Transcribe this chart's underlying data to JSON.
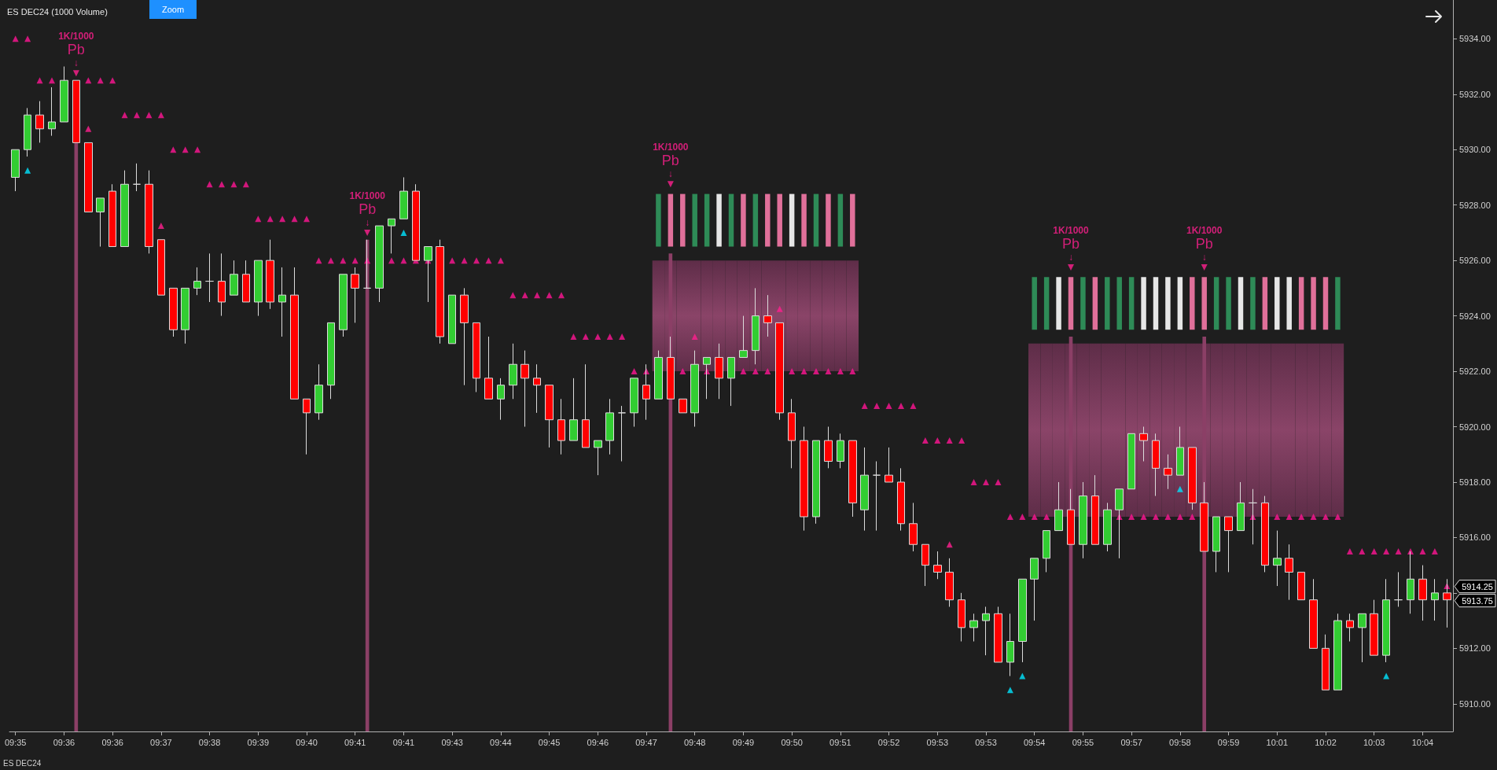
{
  "chart_data": {
    "type": "candlestick",
    "title": "ES DEC24 (1000 Volume)",
    "categories": [
      "09:35",
      null,
      null,
      null,
      "09:36",
      null,
      null,
      null,
      "09:36",
      null,
      null,
      null,
      "09:37",
      null,
      null,
      null,
      "09:38",
      null,
      null,
      null,
      "09:39",
      null,
      null,
      null,
      "09:40",
      null,
      null,
      null,
      "09:41",
      null,
      null,
      null,
      "09:41",
      null,
      null,
      null,
      "09:43",
      null,
      null,
      null,
      "09:44",
      null,
      null,
      null,
      "09:45",
      null,
      null,
      null,
      "09:46",
      null,
      null,
      null,
      "09:47",
      null,
      null,
      null,
      "09:48",
      null,
      null,
      null,
      "09:49",
      null,
      null,
      null,
      "09:50",
      null,
      null,
      null,
      "09:51",
      null,
      null,
      null,
      "09:52",
      null,
      null,
      null,
      "09:53",
      null,
      null,
      null,
      "09:53",
      null,
      null,
      null,
      "09:54",
      null,
      null,
      null,
      "09:55",
      null,
      null,
      null,
      "09:57",
      null,
      null,
      null,
      "09:58",
      null,
      null,
      null,
      "09:59",
      null,
      null,
      null,
      "10:01",
      null,
      null,
      null,
      "10:02",
      null,
      null,
      null,
      "10:03",
      null,
      null,
      null,
      "10:04",
      null,
      null
    ],
    "ohlc": [
      [
        5929,
        5930,
        5928.5,
        5930
      ],
      [
        5930,
        5931.5,
        5929.75,
        5931.25
      ],
      [
        5931.25,
        5931.75,
        5930.25,
        5930.75
      ],
      [
        5930.75,
        5932.25,
        5930.5,
        5931
      ],
      [
        5931,
        5933,
        5931,
        5932.5
      ],
      [
        5932.5,
        5932.5,
        5930.25,
        5930.25
      ],
      [
        5930.25,
        5930.25,
        5927.75,
        5927.75
      ],
      [
        5927.75,
        5928.25,
        5926.5,
        5928.25
      ],
      [
        5928.5,
        5928.75,
        5926.5,
        5926.5
      ],
      [
        5926.5,
        5929.25,
        5926.5,
        5928.75
      ],
      [
        5928.75,
        5929.5,
        5928.5,
        5928.75
      ],
      [
        5928.75,
        5929.25,
        5926.25,
        5926.5
      ],
      [
        5926.75,
        5926.75,
        5924.75,
        5924.75
      ],
      [
        5925,
        5925,
        5923.25,
        5923.5
      ],
      [
        5923.5,
        5925,
        5923,
        5925
      ],
      [
        5925,
        5925.75,
        5924.75,
        5925.25
      ],
      [
        5925.25,
        5926.25,
        5924.5,
        5925.25
      ],
      [
        5925.25,
        5926.25,
        5924,
        5924.5
      ],
      [
        5924.75,
        5926,
        5924.75,
        5925.5
      ],
      [
        5925.5,
        5926,
        5924.5,
        5924.5
      ],
      [
        5924.5,
        5926,
        5924,
        5926
      ],
      [
        5926,
        5926.75,
        5924.25,
        5924.5
      ],
      [
        5924.5,
        5925.75,
        5923.25,
        5924.75
      ],
      [
        5924.75,
        5925.75,
        5921,
        5921
      ],
      [
        5921,
        5921,
        5919,
        5920.5
      ],
      [
        5920.5,
        5922.25,
        5920.25,
        5921.5
      ],
      [
        5921.5,
        5923.75,
        5921,
        5923.75
      ],
      [
        5923.5,
        5925.5,
        5923.25,
        5925.5
      ],
      [
        5925.5,
        5925.75,
        5923.75,
        5925
      ],
      [
        5925,
        5926.75,
        5925,
        5925
      ],
      [
        5925,
        5927.25,
        5924.5,
        5927.25
      ],
      [
        5927.25,
        5927.5,
        5926.25,
        5927.5
      ],
      [
        5927.5,
        5929,
        5927.5,
        5928.5
      ],
      [
        5928.5,
        5928.75,
        5926,
        5926
      ],
      [
        5926,
        5926.5,
        5924.5,
        5926.5
      ],
      [
        5926.5,
        5926.75,
        5923,
        5923.25
      ],
      [
        5923,
        5924.75,
        5923,
        5924.75
      ],
      [
        5924.75,
        5925,
        5921.5,
        5923.75
      ],
      [
        5923.75,
        5923.75,
        5921.25,
        5921.75
      ],
      [
        5921.75,
        5923.25,
        5921,
        5921
      ],
      [
        5921,
        5921.75,
        5920.25,
        5921.5
      ],
      [
        5921.5,
        5923,
        5921,
        5922.25
      ],
      [
        5922.25,
        5922.75,
        5920,
        5921.75
      ],
      [
        5921.75,
        5922.25,
        5920.5,
        5921.5
      ],
      [
        5921.5,
        5921.5,
        5919.25,
        5920.25
      ],
      [
        5920.25,
        5921,
        5919,
        5919.5
      ],
      [
        5919.5,
        5921.75,
        5919.5,
        5920.25
      ],
      [
        5920.25,
        5922.25,
        5919.25,
        5919.25
      ],
      [
        5919.25,
        5919.5,
        5918.25,
        5919.5
      ],
      [
        5919.5,
        5921,
        5919,
        5920.5
      ],
      [
        5920.5,
        5920.75,
        5918.75,
        5920.5
      ],
      [
        5920.5,
        5921.75,
        5920,
        5921.75
      ],
      [
        5921.5,
        5922.25,
        5920.25,
        5921
      ],
      [
        5921,
        5922.75,
        5921,
        5922.5
      ],
      [
        5922.5,
        5923.25,
        5921,
        5921
      ],
      [
        5921,
        5921,
        5920.5,
        5920.5
      ],
      [
        5920.5,
        5922.75,
        5920,
        5922.25
      ],
      [
        5922.25,
        5922.5,
        5921,
        5922.5
      ],
      [
        5922.5,
        5923,
        5921,
        5921.75
      ],
      [
        5921.75,
        5922.5,
        5920.75,
        5922.5
      ],
      [
        5922.5,
        5924,
        5922.5,
        5922.75
      ],
      [
        5922.75,
        5925,
        5922.25,
        5924
      ],
      [
        5924,
        5924.75,
        5923.25,
        5923.75
      ],
      [
        5923.75,
        5923.75,
        5920.25,
        5920.5
      ],
      [
        5920.5,
        5921,
        5918.5,
        5919.5
      ],
      [
        5919.5,
        5920,
        5916.25,
        5916.75
      ],
      [
        5916.75,
        5919.5,
        5916.5,
        5919.5
      ],
      [
        5919.5,
        5920,
        5918.5,
        5918.75
      ],
      [
        5918.75,
        5919.75,
        5918.5,
        5919.5
      ],
      [
        5919.5,
        5919.5,
        5916.75,
        5917.25
      ],
      [
        5917,
        5919.25,
        5916.25,
        5918.25
      ],
      [
        5918.25,
        5918.75,
        5916.25,
        5918.25
      ],
      [
        5918.25,
        5919.25,
        5918,
        5918
      ],
      [
        5918,
        5918.5,
        5916.25,
        5916.5
      ],
      [
        5916.5,
        5917.25,
        5915.5,
        5915.75
      ],
      [
        5915.75,
        5915.75,
        5914.25,
        5915
      ],
      [
        5915,
        5915.5,
        5914.5,
        5914.75
      ],
      [
        5914.75,
        5915.25,
        5913.5,
        5913.75
      ],
      [
        5913.75,
        5914,
        5912.25,
        5912.75
      ],
      [
        5912.75,
        5913.25,
        5912.25,
        5913
      ],
      [
        5913,
        5913.5,
        5911.75,
        5913.25
      ],
      [
        5913.25,
        5913.5,
        5911.5,
        5911.5
      ],
      [
        5911.5,
        5913.25,
        5911,
        5912.25
      ],
      [
        5912.25,
        5914.5,
        5911.5,
        5914.5
      ],
      [
        5914.5,
        5915.25,
        5913,
        5915.25
      ],
      [
        5915.25,
        5916.25,
        5914.75,
        5916.25
      ],
      [
        5916.25,
        5918,
        5916.25,
        5917
      ],
      [
        5917,
        5917.75,
        5915.75,
        5915.75
      ],
      [
        5915.75,
        5918,
        5915.25,
        5917.5
      ],
      [
        5917.5,
        5918.25,
        5915.75,
        5915.75
      ],
      [
        5915.75,
        5917.25,
        5915.5,
        5917
      ],
      [
        5917,
        5917.75,
        5915.25,
        5917.75
      ],
      [
        5917.75,
        5919.75,
        5917.75,
        5919.75
      ],
      [
        5919.75,
        5920,
        5918.75,
        5919.5
      ],
      [
        5919.5,
        5919.75,
        5917.5,
        5918.5
      ],
      [
        5918.5,
        5919,
        5917.75,
        5918.25
      ],
      [
        5918.25,
        5920,
        5918.25,
        5919.25
      ],
      [
        5919.25,
        5919.25,
        5917,
        5917.25
      ],
      [
        5917.25,
        5918,
        5915.5,
        5915.5
      ],
      [
        5915.5,
        5916.75,
        5914.75,
        5916.75
      ],
      [
        5916.75,
        5916.75,
        5914.75,
        5916.25
      ],
      [
        5916.25,
        5918,
        5916.25,
        5917.25
      ],
      [
        5917.25,
        5917.75,
        5915.75,
        5917.25
      ],
      [
        5917.25,
        5917.5,
        5914.75,
        5915
      ],
      [
        5915,
        5916.25,
        5914.25,
        5915.25
      ],
      [
        5915.25,
        5915.75,
        5913.75,
        5914.75
      ],
      [
        5914.75,
        5914.75,
        5913.75,
        5913.75
      ],
      [
        5913.75,
        5914.5,
        5912,
        5912
      ],
      [
        5912,
        5912.5,
        5910.5,
        5910.5
      ],
      [
        5910.5,
        5913.25,
        5910.5,
        5913
      ],
      [
        5913,
        5913.25,
        5912.25,
        5912.75
      ],
      [
        5912.75,
        5913.25,
        5911.5,
        5913.25
      ],
      [
        5913.25,
        5913.75,
        5911.75,
        5911.75
      ],
      [
        5911.75,
        5914.5,
        5911.5,
        5913.75
      ],
      [
        5913.75,
        5914.75,
        5913.5,
        5913.75
      ],
      [
        5913.75,
        5915.5,
        5913.25,
        5914.5
      ],
      [
        5914.5,
        5915,
        5913,
        5913.75
      ],
      [
        5913.75,
        5914.5,
        5913,
        5914
      ],
      [
        5914,
        5914.5,
        5912.75,
        5913.75
      ]
    ],
    "ylim": [
      5909,
      5935.4
    ],
    "yticks": [
      {
        "value": 5910,
        "label": "5910.00"
      },
      {
        "value": 5912,
        "label": "5912.00"
      },
      {
        "value": 5914,
        "label": null
      },
      {
        "value": 5916,
        "label": "5916.00"
      },
      {
        "value": 5918,
        "label": "5918.00"
      },
      {
        "value": 5920,
        "label": "5920.00"
      },
      {
        "value": 5922,
        "label": "5922.00"
      },
      {
        "value": 5924,
        "label": "5924.00"
      },
      {
        "value": 5926,
        "label": "5926.00"
      },
      {
        "value": 5928,
        "label": "5928.00"
      },
      {
        "value": 5930,
        "label": "5930.00"
      },
      {
        "value": 5932,
        "label": "5932.00"
      },
      {
        "value": 5934,
        "label": "5934.00"
      }
    ],
    "series": [
      {
        "type": "bar",
        "color": "#8a4468",
        "base": [
          null,
          null,
          null,
          null,
          null,
          null,
          null,
          null,
          null,
          null,
          null,
          null,
          null,
          null,
          null,
          null,
          null,
          null,
          null,
          null,
          null,
          null,
          null,
          null,
          null,
          null,
          null,
          null,
          null,
          null,
          null,
          null,
          null,
          null,
          null,
          null,
          null,
          null,
          null,
          null,
          null,
          null,
          null,
          null,
          null,
          null,
          null,
          null,
          null,
          null,
          null,
          null,
          null,
          5922,
          5922,
          5922,
          5922,
          5922,
          5922,
          5922,
          5922,
          5922,
          5922,
          5922,
          5922,
          5922,
          5922,
          5922,
          5922,
          5922,
          null,
          null,
          null,
          null,
          null,
          null,
          null,
          null,
          null,
          null,
          null,
          null,
          null,
          null,
          5916.75,
          5916.75,
          5916.75,
          5916.75,
          5916.75,
          5916.75,
          5916.75,
          5916.75,
          5916.75,
          5916.75,
          5916.75,
          5916.75,
          5916.75,
          5916.75,
          5916.75,
          5916.75,
          5916.75,
          5916.75,
          5916.75,
          5916.75,
          5916.75,
          5916.75,
          5916.75,
          5916.75,
          5916.75,
          5916.75,
          null,
          null,
          null,
          null,
          null,
          null,
          null,
          null,
          null
        ],
        "values": [
          null,
          null,
          null,
          null,
          null,
          null,
          null,
          null,
          null,
          null,
          null,
          null,
          null,
          null,
          null,
          null,
          null,
          null,
          null,
          null,
          null,
          null,
          null,
          null,
          null,
          null,
          null,
          null,
          null,
          null,
          null,
          null,
          null,
          null,
          null,
          null,
          null,
          null,
          null,
          null,
          null,
          null,
          null,
          null,
          null,
          null,
          null,
          null,
          null,
          null,
          null,
          null,
          null,
          4,
          4,
          4,
          4,
          4,
          4,
          4,
          4,
          4,
          4,
          4,
          4,
          4,
          4,
          4,
          4,
          4,
          null,
          null,
          null,
          null,
          null,
          null,
          null,
          null,
          null,
          null,
          null,
          null,
          null,
          null,
          6.25,
          6.25,
          6.25,
          6.25,
          6.25,
          6.25,
          6.25,
          6.25,
          6.25,
          6.25,
          6.25,
          6.25,
          6.25,
          6.25,
          6.25,
          6.25,
          6.25,
          6.25,
          6.25,
          6.25,
          6.25,
          6.25,
          6.25,
          6.25,
          6.25,
          6.25,
          null,
          null,
          null,
          null,
          null,
          null,
          null,
          null,
          null
        ]
      },
      {
        "type": "bar",
        "colors": [
          null,
          null,
          null,
          null,
          null,
          null,
          null,
          null,
          null,
          null,
          null,
          null,
          null,
          null,
          null,
          null,
          null,
          null,
          null,
          null,
          null,
          null,
          null,
          null,
          null,
          null,
          null,
          null,
          null,
          null,
          null,
          null,
          null,
          null,
          null,
          null,
          null,
          null,
          null,
          null,
          null,
          null,
          null,
          null,
          null,
          null,
          null,
          null,
          null,
          null,
          null,
          null,
          null,
          "#2e8b57",
          "#e0709a",
          "#e0709a",
          "#2e8b57",
          "#2e8b57",
          "#e6e6e6",
          "#2e8b57",
          "#e0709a",
          "#2e8b57",
          "#e0709a",
          "#e0709a",
          "#e6e6e6",
          "#e0709a",
          "#2e8b57",
          "#e0709a",
          "#2e8b57",
          "#e0709a",
          null,
          null,
          null,
          null,
          null,
          null,
          null,
          null,
          null,
          null,
          null,
          null,
          null,
          null,
          "#2e8b57",
          "#2e8b57",
          "#e6e6e6",
          "#e0709a",
          "#2e8b57",
          "#e0709a",
          "#2e8b57",
          "#2e8b57",
          "#2e8b57",
          "#e6e6e6",
          "#e6e6e6",
          "#e6e6e6",
          "#e6e6e6",
          "#e0709a",
          "#e0709a",
          "#2e8b57",
          "#2e8b57",
          "#e6e6e6",
          "#2e8b57",
          "#e0709a",
          "#e6e6e6",
          "#e6e6e6",
          "#e0709a",
          "#e0709a",
          "#e0709a",
          "#2e8b57",
          null,
          null,
          null,
          null,
          null,
          null,
          null,
          null,
          null
        ],
        "base": [
          null,
          null,
          null,
          null,
          null,
          null,
          null,
          null,
          null,
          null,
          null,
          null,
          null,
          null,
          null,
          null,
          null,
          null,
          null,
          null,
          null,
          null,
          null,
          null,
          null,
          null,
          null,
          null,
          null,
          null,
          null,
          null,
          null,
          null,
          null,
          null,
          null,
          null,
          null,
          null,
          null,
          null,
          null,
          null,
          null,
          null,
          null,
          null,
          null,
          null,
          null,
          null,
          null,
          5926.5,
          5926.5,
          5926.5,
          5926.5,
          5926.5,
          5926.5,
          5926.5,
          5926.5,
          5926.5,
          5926.5,
          5926.5,
          5926.5,
          5926.5,
          5926.5,
          5926.5,
          5926.5,
          5926.5,
          null,
          null,
          null,
          null,
          null,
          null,
          null,
          null,
          null,
          null,
          null,
          null,
          null,
          null,
          5923.5,
          5923.5,
          5923.5,
          5923.5,
          5923.5,
          5923.5,
          5923.5,
          5923.5,
          5923.5,
          5923.5,
          5923.5,
          5923.5,
          5923.5,
          5923.5,
          5923.5,
          5923.5,
          5923.5,
          5923.5,
          5923.5,
          5923.5,
          5923.5,
          5923.5,
          5923.5,
          5923.5,
          5923.5,
          5923.5,
          null,
          null,
          null,
          null,
          null,
          null,
          null,
          null,
          null
        ],
        "values": [
          null,
          null,
          null,
          null,
          null,
          null,
          null,
          null,
          null,
          null,
          null,
          null,
          null,
          null,
          null,
          null,
          null,
          null,
          null,
          null,
          null,
          null,
          null,
          null,
          null,
          null,
          null,
          null,
          null,
          null,
          null,
          null,
          null,
          null,
          null,
          null,
          null,
          null,
          null,
          null,
          null,
          null,
          null,
          null,
          null,
          null,
          null,
          null,
          null,
          null,
          null,
          null,
          null,
          1.9,
          1.9,
          1.9,
          1.9,
          1.9,
          1.9,
          1.9,
          1.9,
          1.9,
          1.9,
          1.9,
          1.9,
          1.9,
          1.9,
          1.9,
          1.9,
          1.9,
          null,
          null,
          null,
          null,
          null,
          null,
          null,
          null,
          null,
          null,
          null,
          null,
          null,
          null,
          1.9,
          1.9,
          1.9,
          1.9,
          1.9,
          1.9,
          1.9,
          1.9,
          1.9,
          1.9,
          1.9,
          1.9,
          1.9,
          1.9,
          1.9,
          1.9,
          1.9,
          1.9,
          1.9,
          1.9,
          1.9,
          1.9,
          1.9,
          1.9,
          1.9,
          1.9,
          null,
          null,
          null,
          null,
          null,
          null,
          null,
          null,
          null
        ]
      },
      {
        "type": "bar",
        "color": "#8b3f66",
        "base": [
          null,
          null,
          null,
          null,
          null,
          5909,
          null,
          null,
          null,
          null,
          null,
          null,
          null,
          null,
          null,
          null,
          null,
          null,
          null,
          null,
          null,
          null,
          null,
          null,
          null,
          null,
          null,
          null,
          null,
          5909,
          null,
          null,
          null,
          null,
          null,
          null,
          null,
          null,
          null,
          null,
          null,
          null,
          null,
          null,
          null,
          null,
          null,
          null,
          null,
          null,
          null,
          null,
          null,
          null,
          5909,
          null,
          null,
          null,
          null,
          null,
          null,
          null,
          null,
          null,
          null,
          null,
          null,
          null,
          null,
          null,
          null,
          null,
          null,
          null,
          null,
          null,
          null,
          null,
          null,
          null,
          null,
          null,
          null,
          null,
          null,
          null,
          null,
          5909,
          null,
          null,
          null,
          null,
          null,
          null,
          null,
          null,
          null,
          null,
          5909,
          null,
          null,
          null,
          null,
          null,
          null,
          null,
          null,
          null,
          null,
          null,
          null,
          null,
          null,
          null,
          null,
          null,
          null,
          null,
          null
        ],
        "values": [
          null,
          null,
          null,
          null,
          null,
          21.25,
          null,
          null,
          null,
          null,
          null,
          null,
          null,
          null,
          null,
          null,
          null,
          null,
          null,
          null,
          null,
          null,
          null,
          null,
          null,
          null,
          null,
          null,
          null,
          17.75,
          null,
          null,
          null,
          null,
          null,
          null,
          null,
          null,
          null,
          null,
          null,
          null,
          null,
          null,
          null,
          null,
          null,
          null,
          null,
          null,
          null,
          null,
          null,
          null,
          17.25,
          null,
          null,
          null,
          null,
          null,
          null,
          null,
          null,
          null,
          null,
          null,
          null,
          null,
          null,
          null,
          null,
          null,
          null,
          null,
          null,
          null,
          null,
          null,
          null,
          null,
          null,
          null,
          null,
          null,
          null,
          null,
          null,
          14.25,
          null,
          null,
          null,
          null,
          null,
          null,
          null,
          null,
          null,
          null,
          14.25,
          null,
          null,
          null,
          null,
          null,
          null,
          null,
          null,
          null,
          null,
          null,
          null,
          null,
          null,
          null,
          null,
          null,
          null,
          null,
          null
        ]
      },
      {
        "type": "scatter",
        "marker": "triangle",
        "color": "#ff1f8f",
        "values": [
          null,
          null,
          null,
          null,
          null,
          5932.75,
          null,
          null,
          null,
          null,
          null,
          null,
          null,
          null,
          null,
          null,
          null,
          null,
          null,
          null,
          null,
          null,
          null,
          null,
          null,
          null,
          null,
          null,
          null,
          5927,
          null,
          null,
          null,
          null,
          null,
          null,
          null,
          null,
          null,
          null,
          null,
          null,
          null,
          null,
          null,
          null,
          null,
          null,
          null,
          null,
          null,
          null,
          null,
          null,
          5928.75,
          null,
          null,
          null,
          null,
          null,
          null,
          null,
          null,
          null,
          null,
          null,
          null,
          null,
          null,
          null,
          null,
          null,
          null,
          null,
          null,
          null,
          null,
          null,
          null,
          null,
          null,
          null,
          null,
          null,
          null,
          null,
          null,
          5925.75,
          null,
          null,
          null,
          null,
          null,
          null,
          null,
          null,
          null,
          null,
          5925.75,
          null,
          null,
          null,
          null,
          null,
          null,
          null,
          null,
          null,
          null,
          null,
          null,
          null,
          null,
          null,
          null,
          null,
          null,
          null,
          null
        ],
        "value_labels": [
          null,
          null,
          null,
          null,
          null,
          "1K/1000\nPb\n↓",
          null,
          null,
          null,
          null,
          null,
          null,
          null,
          null,
          null,
          null,
          null,
          null,
          null,
          null,
          null,
          null,
          null,
          null,
          null,
          null,
          null,
          null,
          null,
          "1K/1000\nPb\n↓",
          null,
          null,
          null,
          null,
          null,
          null,
          null,
          null,
          null,
          null,
          null,
          null,
          null,
          null,
          null,
          null,
          null,
          null,
          null,
          null,
          null,
          null,
          null,
          null,
          "1K/1000\nPb\n↓",
          null,
          null,
          null,
          null,
          null,
          null,
          null,
          null,
          null,
          null,
          null,
          null,
          null,
          null,
          null,
          null,
          null,
          null,
          null,
          null,
          null,
          null,
          null,
          null,
          null,
          null,
          null,
          null,
          null,
          null,
          null,
          null,
          "1K/1000\nPb\n↓",
          null,
          null,
          null,
          null,
          null,
          null,
          null,
          null,
          null,
          null,
          "1K/1000\nPb\n↓",
          null,
          null,
          null,
          null,
          null,
          null,
          null,
          null,
          null,
          null,
          null,
          null,
          null,
          null,
          null,
          null,
          null,
          null,
          null,
          null
        ]
      },
      {
        "type": "scatter",
        "marker": "triangle",
        "color": "#ff1493",
        "values": [
          5934,
          5934,
          5932.5,
          5932.5,
          null,
          null,
          5932.5,
          5932.5,
          5932.5,
          5931.25,
          5931.25,
          5931.25,
          5931.25,
          5930,
          5930,
          5930,
          5928.75,
          5928.75,
          5928.75,
          5928.75,
          5927.5,
          5927.5,
          5927.5,
          5927.5,
          5927.5,
          5926,
          5926,
          5926,
          5926,
          5926,
          null,
          5926,
          5926,
          5926,
          5926,
          null,
          5926,
          5926,
          5926,
          5926,
          5926,
          5924.75,
          5924.75,
          5924.75,
          5924.75,
          5924.75,
          5923.25,
          5923.25,
          5923.25,
          5923.25,
          5923.25,
          5922,
          5922,
          null,
          null,
          5922,
          null,
          5922,
          null,
          null,
          5922,
          5922,
          5922,
          null,
          5922,
          5922,
          5922,
          5922,
          5922,
          5922,
          5920.75,
          5920.75,
          5920.75,
          5920.75,
          5920.75,
          5919.5,
          5919.5,
          5919.5,
          5919.5,
          5918,
          5918,
          5918,
          5916.75,
          5916.75,
          5916.75,
          5916.75,
          null,
          null,
          null,
          null,
          null,
          5916.75,
          5916.75,
          5916.75,
          5916.75,
          5916.75,
          5916.75,
          5916.75,
          null,
          null,
          null,
          null,
          5916.75,
          null,
          5916.75,
          5916.75,
          5916.75,
          5916.75,
          5916.75,
          5916.75,
          5915.5,
          5915.5,
          5915.5,
          5915.5,
          5915.5,
          5915.5,
          5915.5,
          5915.5,
          5914.25
        ]
      },
      {
        "type": "scatter",
        "marker": "triangle",
        "color": "#00e5ff",
        "values": [
          null,
          5929.25,
          null,
          null,
          null,
          null,
          null,
          null,
          null,
          null,
          null,
          null,
          null,
          null,
          null,
          null,
          null,
          null,
          null,
          null,
          null,
          null,
          null,
          null,
          null,
          null,
          null,
          null,
          null,
          null,
          null,
          null,
          5927,
          null,
          null,
          null,
          null,
          null,
          null,
          null,
          null,
          null,
          null,
          null,
          null,
          null,
          null,
          null,
          null,
          null,
          null,
          null,
          null,
          null,
          null,
          null,
          null,
          null,
          null,
          null,
          null,
          null,
          null,
          null,
          null,
          null,
          null,
          null,
          null,
          null,
          null,
          null,
          null,
          null,
          null,
          null,
          null,
          null,
          null,
          null,
          null,
          null,
          5910.5,
          5911,
          null,
          null,
          null,
          null,
          null,
          null,
          null,
          null,
          null,
          null,
          null,
          null,
          5917.75,
          null,
          null,
          null,
          null,
          null,
          null,
          null,
          null,
          null,
          null,
          null,
          null,
          null,
          null,
          null,
          null,
          5911,
          null,
          null,
          null,
          null,
          null
        ]
      },
      {
        "type": "scatter",
        "marker": "triangle",
        "color": "#ff1f8f",
        "values": [
          null,
          null,
          null,
          null,
          null,
          null,
          5930.75,
          null,
          null,
          null,
          null,
          null,
          5927.25,
          null,
          null,
          null,
          null,
          null,
          null,
          null,
          null,
          null,
          null,
          null,
          null,
          null,
          null,
          null,
          null,
          null,
          null,
          null,
          null,
          null,
          null,
          null,
          null,
          null,
          null,
          null,
          null,
          null,
          null,
          null,
          null,
          null,
          null,
          null,
          null,
          null,
          null,
          null,
          null,
          null,
          null,
          null,
          5923.25,
          null,
          null,
          null,
          null,
          null,
          null,
          5924.25,
          null,
          null,
          null,
          null,
          null,
          null,
          null,
          null,
          null,
          null,
          null,
          null,
          null,
          5915.75,
          null,
          null,
          null,
          null,
          null,
          null,
          null,
          null,
          null,
          null,
          null,
          null,
          null,
          null,
          null,
          null,
          null,
          null,
          null,
          null,
          null,
          null,
          null,
          null,
          null,
          null,
          null,
          null,
          null,
          null,
          null,
          null,
          null,
          null,
          null,
          null,
          null,
          null,
          null,
          null,
          null
        ]
      }
    ],
    "annotations": [
      "ES DEC24",
      "Zoom",
      "5914.25",
      "5913.75"
    ]
  }
}
